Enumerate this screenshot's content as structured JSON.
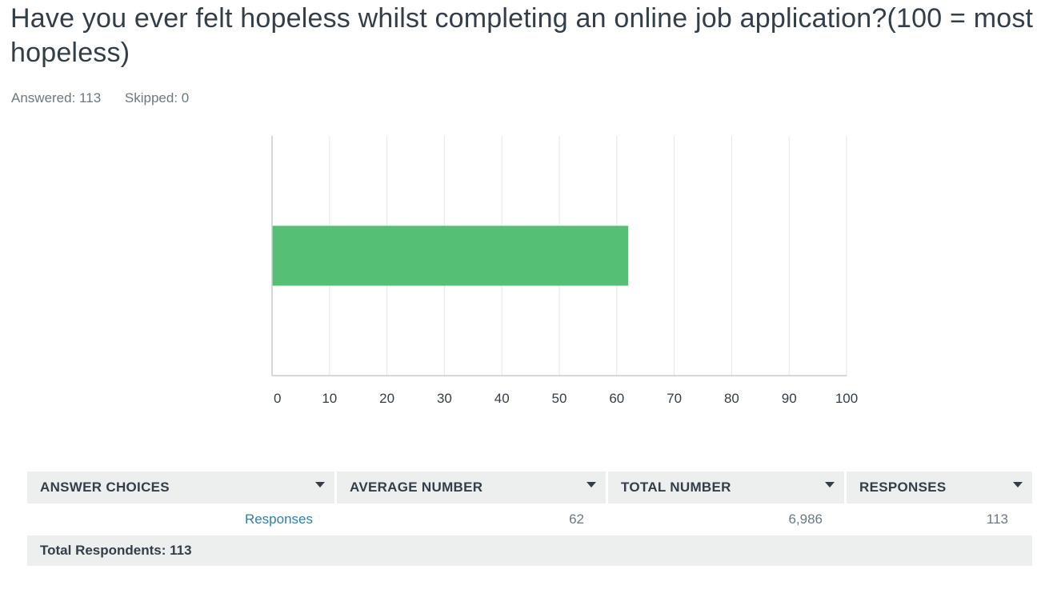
{
  "question": {
    "title": "Have you ever felt hopeless whilst completing an online job application?(100 = most hopeless)",
    "answered": "Answered: 113",
    "skipped": "Skipped: 0"
  },
  "chart_data": {
    "type": "bar",
    "orientation": "horizontal",
    "categories": [
      "Responses"
    ],
    "values": [
      62
    ],
    "xlim": [
      0,
      100
    ],
    "ticks": [
      "0",
      "10",
      "20",
      "30",
      "40",
      "50",
      "60",
      "70",
      "80",
      "90",
      "100"
    ],
    "grid": true,
    "bar_color": "#55bf75",
    "title": "",
    "xlabel": "",
    "ylabel": ""
  },
  "table": {
    "headers": [
      "ANSWER CHOICES",
      "AVERAGE NUMBER",
      "TOTAL NUMBER",
      "RESPONSES"
    ],
    "rows": [
      {
        "choice": "Responses",
        "average": "62",
        "total": "6,986",
        "responses": "113"
      }
    ],
    "total_label": "Total Respondents: 113"
  }
}
